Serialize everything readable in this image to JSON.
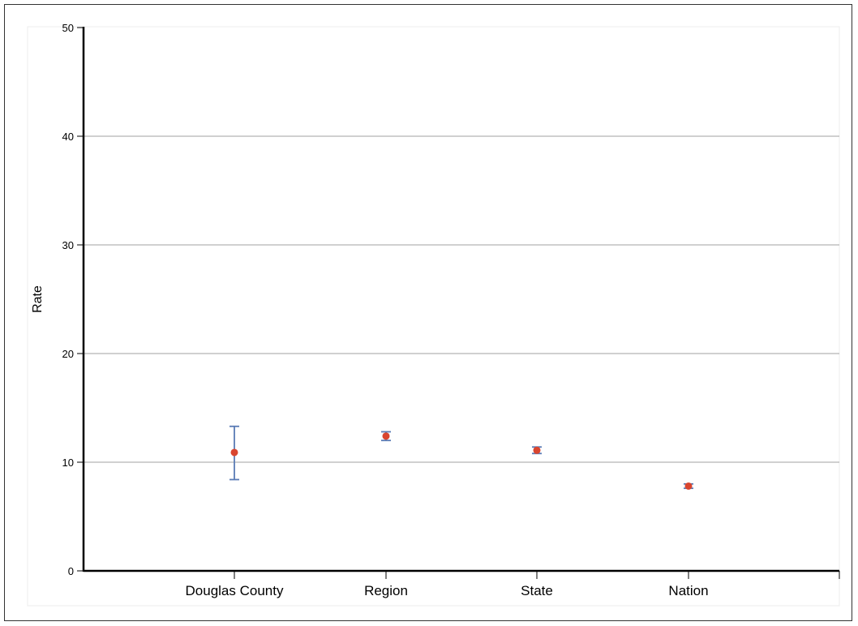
{
  "chart_data": {
    "type": "scatter",
    "title": "",
    "xlabel": "",
    "ylabel": "Rate",
    "ylim": [
      0,
      50
    ],
    "yticks": [
      0,
      10,
      20,
      30,
      40,
      50
    ],
    "grid": true,
    "categories": [
      "Douglas County",
      "Region",
      "State",
      "Nation"
    ],
    "values": [
      10.9,
      12.4,
      11.1,
      7.8
    ],
    "ci_lower": [
      8.4,
      12.0,
      10.8,
      7.6
    ],
    "ci_upper": [
      13.3,
      12.8,
      11.4,
      8.0
    ],
    "colors": {
      "point": "#d9452f",
      "error_bar": "#5a7bb5",
      "grid": "#a0a0a0",
      "axis": "#000000"
    }
  }
}
